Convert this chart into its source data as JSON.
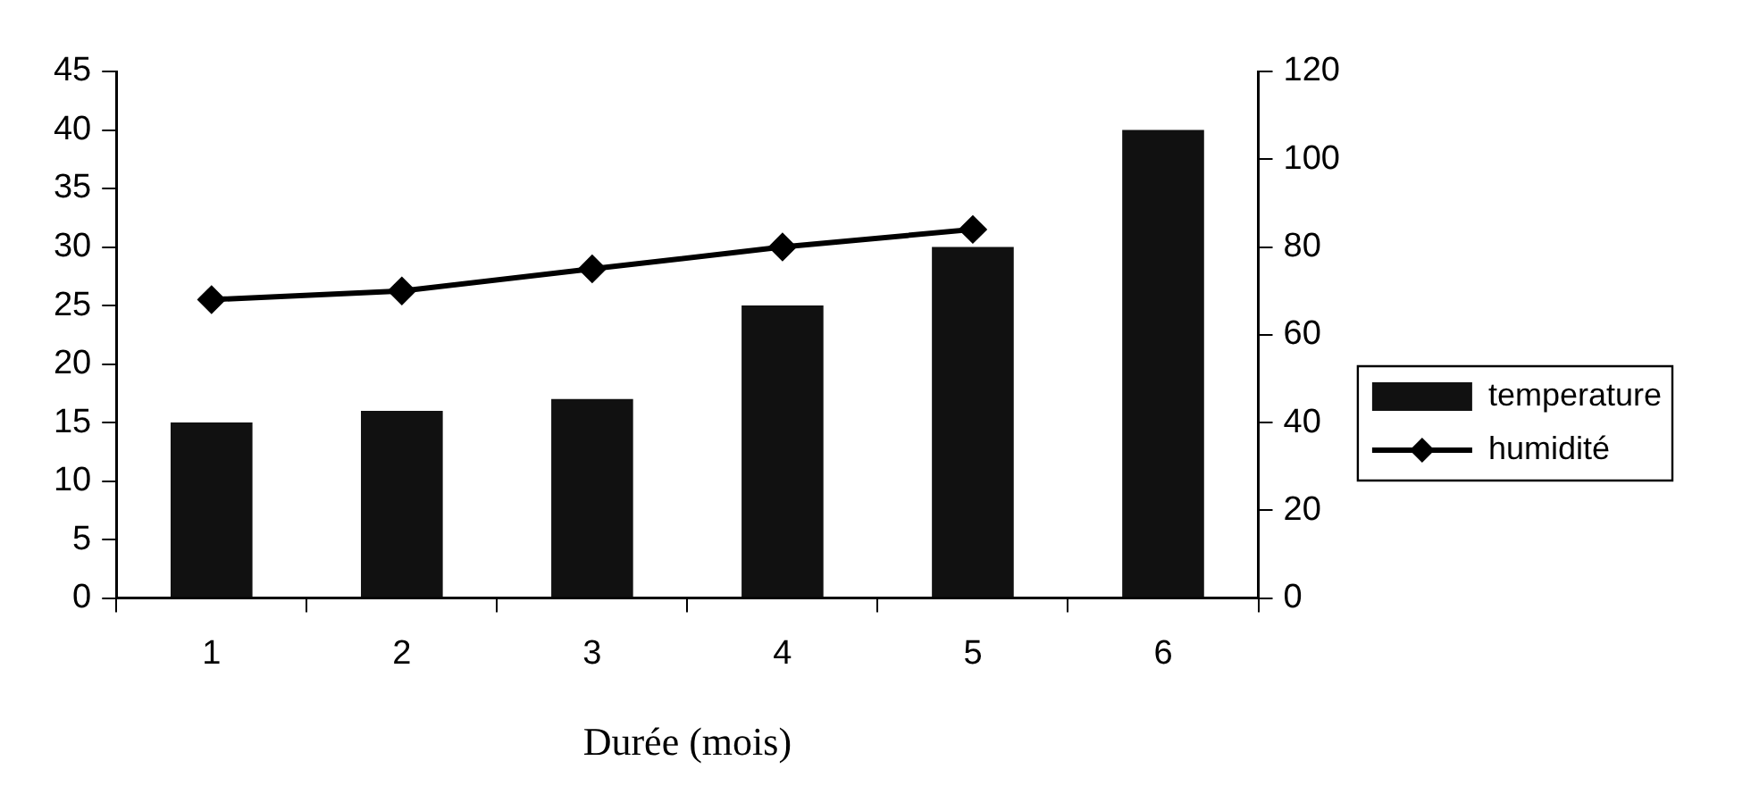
{
  "chart_data": {
    "type": "bar",
    "xlabel": "Durée (mois)",
    "categories": [
      "1",
      "2",
      "3",
      "4",
      "5",
      "6"
    ],
    "series": [
      {
        "name": "temperature",
        "color": "#111111",
        "values": [
          15,
          16,
          17,
          25,
          30,
          40
        ]
      },
      {
        "name": "humidité",
        "type": "line",
        "axis": "y2",
        "color": "#000000",
        "marker": "diamond",
        "values": [
          68,
          70,
          75,
          80,
          84,
          null
        ]
      }
    ],
    "ylim": [
      0,
      45
    ],
    "yticks": [
      0,
      5,
      10,
      15,
      20,
      25,
      30,
      35,
      40,
      45
    ],
    "y2lim": [
      0,
      120
    ],
    "y2ticks": [
      0,
      20,
      40,
      60,
      80,
      100,
      120
    ],
    "grid": false,
    "legend": "right"
  }
}
